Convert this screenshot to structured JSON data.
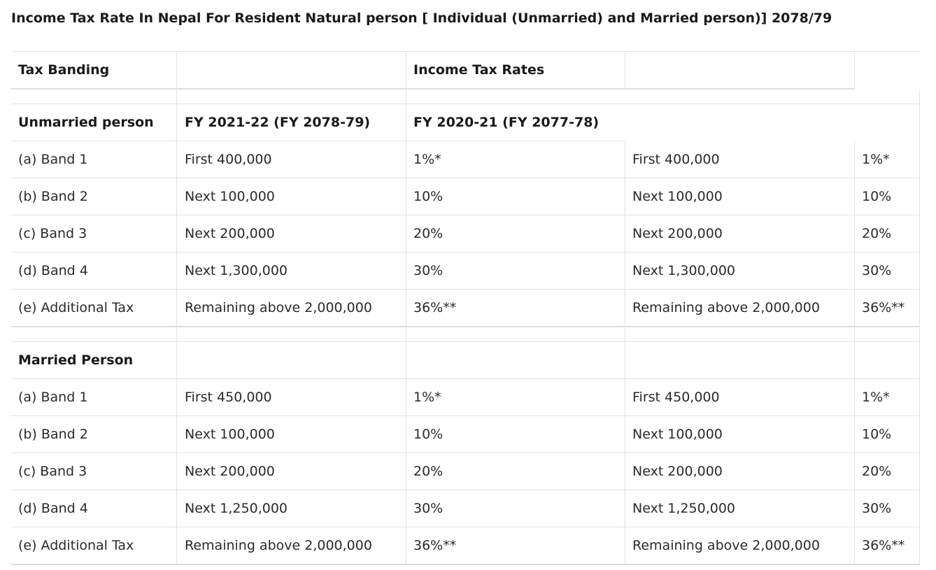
{
  "title": "Income Tax Rate In Nepal For Resident Natural person [ Individual (Unmarried) and Married person)] 2078/79",
  "header": {
    "col1": "Tax Banding",
    "col3": "Income Tax Rates"
  },
  "unmarried": {
    "label": "Unmarried person",
    "fy_current": "FY 2021-22 (FY 2078-79)",
    "fy_previous": "FY 2020-21 (FY 2077-78)",
    "rows": [
      {
        "band": "(a) Band 1",
        "amount_current": "First 400,000",
        "rate_current": "1%*",
        "amount_previous": "First 400,000",
        "rate_previous": "1%*"
      },
      {
        "band": "(b) Band 2",
        "amount_current": "Next 100,000",
        "rate_current": "10%",
        "amount_previous": "Next 100,000",
        "rate_previous": "10%"
      },
      {
        "band": "(c) Band 3",
        "amount_current": "Next 200,000",
        "rate_current": "20%",
        "amount_previous": "Next 200,000",
        "rate_previous": "20%"
      },
      {
        "band": "(d) Band 4",
        "amount_current": "Next 1,300,000",
        "rate_current": "30%",
        "amount_previous": "Next 1,300,000",
        "rate_previous": "30%"
      },
      {
        "band": "(e) Additional Tax",
        "amount_current": "Remaining above 2,000,000",
        "rate_current": "36%**",
        "amount_previous": "Remaining above 2,000,000",
        "rate_previous": "36%**"
      }
    ]
  },
  "married": {
    "label": "Married Person",
    "rows": [
      {
        "band": "(a) Band 1",
        "amount_current": "First 450,000",
        "rate_current": "1%*",
        "amount_previous": "First 450,000",
        "rate_previous": "1%*"
      },
      {
        "band": "(b) Band 2",
        "amount_current": "Next 100,000",
        "rate_current": "10%",
        "amount_previous": "Next 100,000",
        "rate_previous": "10%"
      },
      {
        "band": "(c) Band 3",
        "amount_current": "Next 200,000",
        "rate_current": "20%",
        "amount_previous": "Next 200,000",
        "rate_previous": "20%"
      },
      {
        "band": "(d) Band 4",
        "amount_current": "Next 1,250,000",
        "rate_current": "30%",
        "amount_previous": "Next 1,250,000",
        "rate_previous": "30%"
      },
      {
        "band": "(e) Additional Tax",
        "amount_current": "Remaining above 2,000,000",
        "rate_current": "36%**",
        "amount_previous": "Remaining above 2,000,000",
        "rate_previous": "36%**"
      }
    ]
  }
}
